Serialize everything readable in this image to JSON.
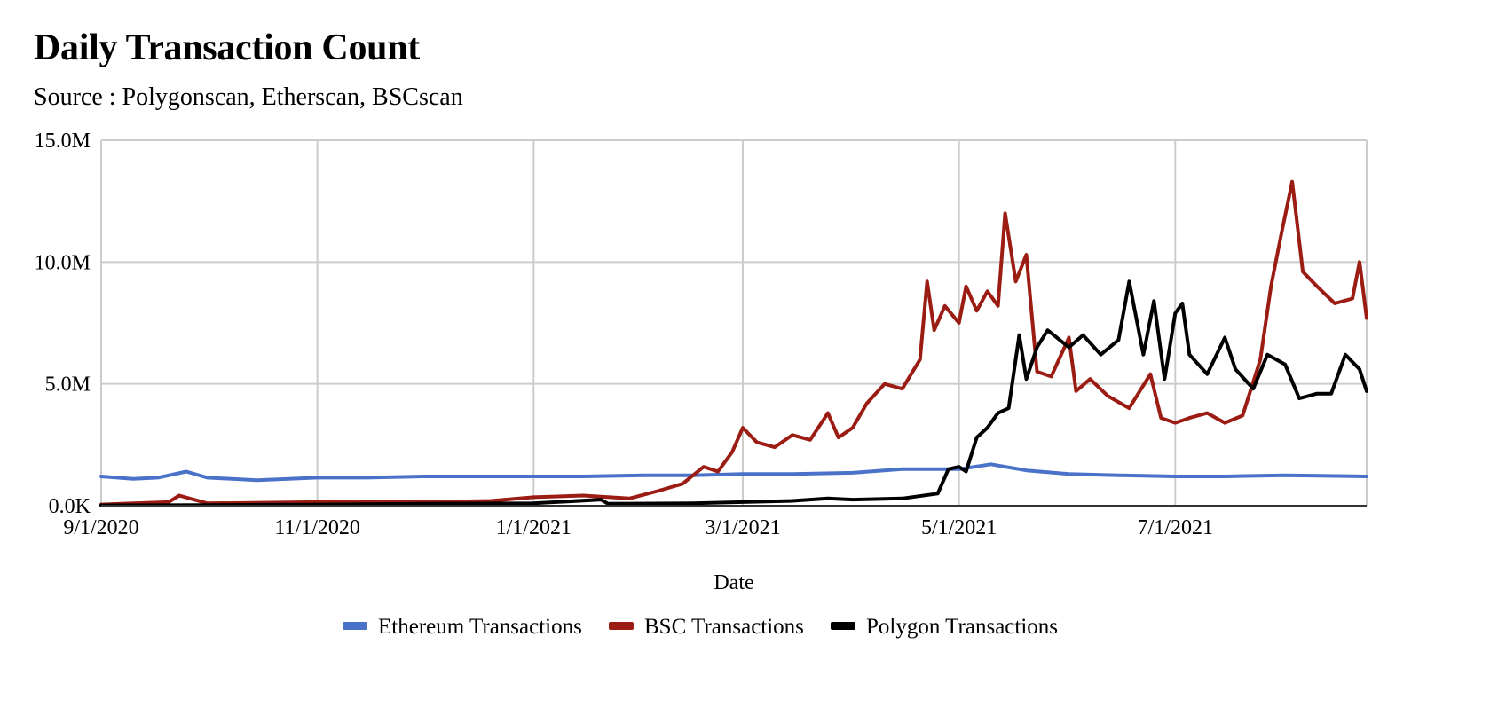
{
  "chart_data": {
    "type": "line",
    "title": "Daily Transaction Count",
    "subtitle": "Source : Polygonscan, Etherscan, BSCscan",
    "xlabel": "Date",
    "ylabel": "",
    "x_start": "2020-09-01",
    "x_end": "2021-08-24",
    "x_ticks": [
      {
        "date": "2020-09-01",
        "label": "9/1/2020"
      },
      {
        "date": "2020-11-01",
        "label": "11/1/2020"
      },
      {
        "date": "2021-01-01",
        "label": "1/1/2021"
      },
      {
        "date": "2021-03-01",
        "label": "3/1/2021"
      },
      {
        "date": "2021-05-01",
        "label": "5/1/2021"
      },
      {
        "date": "2021-07-01",
        "label": "7/1/2021"
      }
    ],
    "ylim": [
      0,
      15000000
    ],
    "y_ticks": [
      {
        "value": 0,
        "label": "0.0K"
      },
      {
        "value": 5000000,
        "label": "5.0M"
      },
      {
        "value": 10000000,
        "label": "10.0M"
      },
      {
        "value": 15000000,
        "label": "15.0M"
      }
    ],
    "grid": true,
    "legend_position": "bottom",
    "series": [
      {
        "name": "Ethereum Transactions",
        "color": "#4a72c8",
        "points": [
          [
            "2020-09-01",
            1200000
          ],
          [
            "2020-09-10",
            1100000
          ],
          [
            "2020-09-17",
            1150000
          ],
          [
            "2020-09-25",
            1400000
          ],
          [
            "2020-10-01",
            1150000
          ],
          [
            "2020-10-15",
            1050000
          ],
          [
            "2020-11-01",
            1150000
          ],
          [
            "2020-11-15",
            1150000
          ],
          [
            "2020-12-01",
            1200000
          ],
          [
            "2020-12-15",
            1200000
          ],
          [
            "2021-01-01",
            1200000
          ],
          [
            "2021-01-15",
            1200000
          ],
          [
            "2021-02-01",
            1250000
          ],
          [
            "2021-02-15",
            1250000
          ],
          [
            "2021-03-01",
            1300000
          ],
          [
            "2021-03-15",
            1300000
          ],
          [
            "2021-04-01",
            1350000
          ],
          [
            "2021-04-15",
            1500000
          ],
          [
            "2021-05-01",
            1500000
          ],
          [
            "2021-05-10",
            1700000
          ],
          [
            "2021-05-20",
            1450000
          ],
          [
            "2021-06-01",
            1300000
          ],
          [
            "2021-06-15",
            1250000
          ],
          [
            "2021-07-01",
            1200000
          ],
          [
            "2021-07-15",
            1200000
          ],
          [
            "2021-08-01",
            1250000
          ],
          [
            "2021-08-24",
            1200000
          ]
        ]
      },
      {
        "name": "BSC Transactions",
        "color": "#9b1c13",
        "points": [
          [
            "2020-09-01",
            50000
          ],
          [
            "2020-09-20",
            150000
          ],
          [
            "2020-09-23",
            420000
          ],
          [
            "2020-10-01",
            100000
          ],
          [
            "2020-11-01",
            150000
          ],
          [
            "2020-12-01",
            150000
          ],
          [
            "2020-12-20",
            200000
          ],
          [
            "2021-01-01",
            350000
          ],
          [
            "2021-01-15",
            420000
          ],
          [
            "2021-01-28",
            300000
          ],
          [
            "2021-02-05",
            600000
          ],
          [
            "2021-02-12",
            900000
          ],
          [
            "2021-02-18",
            1600000
          ],
          [
            "2021-02-22",
            1400000
          ],
          [
            "2021-02-26",
            2200000
          ],
          [
            "2021-03-01",
            3200000
          ],
          [
            "2021-03-05",
            2600000
          ],
          [
            "2021-03-10",
            2400000
          ],
          [
            "2021-03-15",
            2900000
          ],
          [
            "2021-03-20",
            2700000
          ],
          [
            "2021-03-25",
            3800000
          ],
          [
            "2021-03-28",
            2800000
          ],
          [
            "2021-04-01",
            3200000
          ],
          [
            "2021-04-05",
            4200000
          ],
          [
            "2021-04-10",
            5000000
          ],
          [
            "2021-04-15",
            4800000
          ],
          [
            "2021-04-20",
            6000000
          ],
          [
            "2021-04-22",
            9200000
          ],
          [
            "2021-04-24",
            7200000
          ],
          [
            "2021-04-27",
            8200000
          ],
          [
            "2021-05-01",
            7500000
          ],
          [
            "2021-05-03",
            9000000
          ],
          [
            "2021-05-06",
            8000000
          ],
          [
            "2021-05-09",
            8800000
          ],
          [
            "2021-05-12",
            8200000
          ],
          [
            "2021-05-14",
            12000000
          ],
          [
            "2021-05-17",
            9200000
          ],
          [
            "2021-05-20",
            10300000
          ],
          [
            "2021-05-23",
            5500000
          ],
          [
            "2021-05-27",
            5300000
          ],
          [
            "2021-06-01",
            6900000
          ],
          [
            "2021-06-03",
            4700000
          ],
          [
            "2021-06-07",
            5200000
          ],
          [
            "2021-06-12",
            4500000
          ],
          [
            "2021-06-18",
            4000000
          ],
          [
            "2021-06-24",
            5400000
          ],
          [
            "2021-06-27",
            3600000
          ],
          [
            "2021-07-01",
            3400000
          ],
          [
            "2021-07-05",
            3600000
          ],
          [
            "2021-07-10",
            3800000
          ],
          [
            "2021-07-15",
            3400000
          ],
          [
            "2021-07-20",
            3700000
          ],
          [
            "2021-07-25",
            6000000
          ],
          [
            "2021-07-28",
            9000000
          ],
          [
            "2021-07-31",
            11200000
          ],
          [
            "2021-08-03",
            13300000
          ],
          [
            "2021-08-06",
            9600000
          ],
          [
            "2021-08-10",
            9000000
          ],
          [
            "2021-08-15",
            8300000
          ],
          [
            "2021-08-20",
            8500000
          ],
          [
            "2021-08-22",
            10000000
          ],
          [
            "2021-08-24",
            7700000
          ]
        ]
      },
      {
        "name": "Polygon Transactions",
        "color": "#000000",
        "points": [
          [
            "2020-09-01",
            20000
          ],
          [
            "2020-10-01",
            30000
          ],
          [
            "2020-11-01",
            50000
          ],
          [
            "2020-12-01",
            80000
          ],
          [
            "2021-01-01",
            100000
          ],
          [
            "2021-01-20",
            250000
          ],
          [
            "2021-01-22",
            80000
          ],
          [
            "2021-02-15",
            100000
          ],
          [
            "2021-03-01",
            150000
          ],
          [
            "2021-03-15",
            200000
          ],
          [
            "2021-03-25",
            300000
          ],
          [
            "2021-04-01",
            250000
          ],
          [
            "2021-04-15",
            300000
          ],
          [
            "2021-04-25",
            500000
          ],
          [
            "2021-04-28",
            1500000
          ],
          [
            "2021-05-01",
            1600000
          ],
          [
            "2021-05-03",
            1400000
          ],
          [
            "2021-05-06",
            2800000
          ],
          [
            "2021-05-09",
            3200000
          ],
          [
            "2021-05-12",
            3800000
          ],
          [
            "2021-05-15",
            4000000
          ],
          [
            "2021-05-18",
            7000000
          ],
          [
            "2021-05-20",
            5200000
          ],
          [
            "2021-05-23",
            6500000
          ],
          [
            "2021-05-26",
            7200000
          ],
          [
            "2021-06-01",
            6500000
          ],
          [
            "2021-06-05",
            7000000
          ],
          [
            "2021-06-10",
            6200000
          ],
          [
            "2021-06-15",
            6800000
          ],
          [
            "2021-06-18",
            9200000
          ],
          [
            "2021-06-22",
            6200000
          ],
          [
            "2021-06-25",
            8400000
          ],
          [
            "2021-06-28",
            5200000
          ],
          [
            "2021-07-01",
            7900000
          ],
          [
            "2021-07-03",
            8300000
          ],
          [
            "2021-07-05",
            6200000
          ],
          [
            "2021-07-10",
            5400000
          ],
          [
            "2021-07-15",
            6900000
          ],
          [
            "2021-07-18",
            5600000
          ],
          [
            "2021-07-23",
            4800000
          ],
          [
            "2021-07-27",
            6200000
          ],
          [
            "2021-08-01",
            5800000
          ],
          [
            "2021-08-05",
            4400000
          ],
          [
            "2021-08-10",
            4600000
          ],
          [
            "2021-08-14",
            4600000
          ],
          [
            "2021-08-18",
            6200000
          ],
          [
            "2021-08-22",
            5600000
          ],
          [
            "2021-08-24",
            4700000
          ]
        ]
      }
    ]
  }
}
